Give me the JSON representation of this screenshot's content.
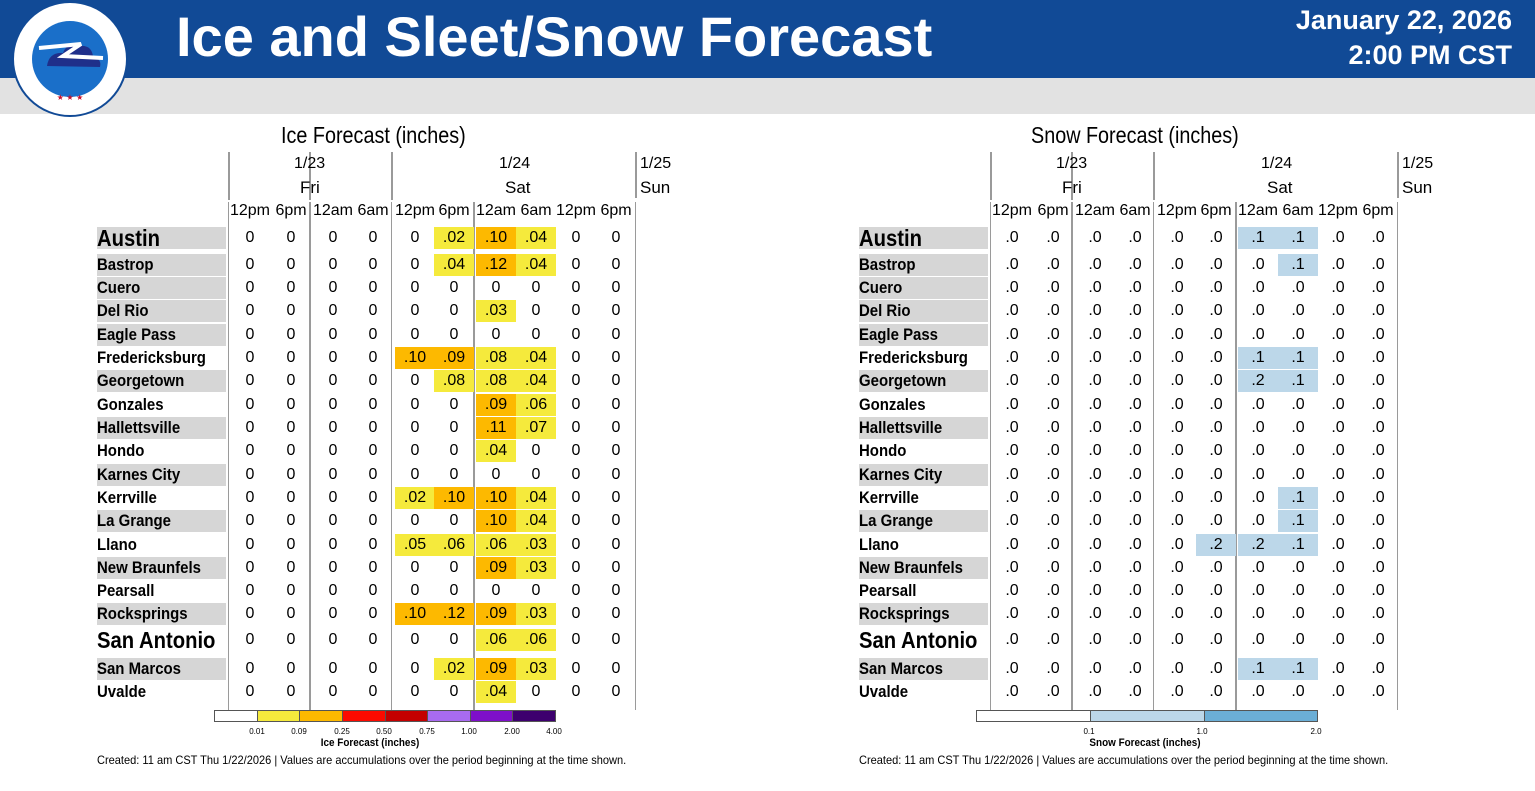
{
  "header": {
    "title": "Ice and Sleet/Snow Forecast",
    "date": "January 22, 2026",
    "time": "2:00 PM CST",
    "logo_text": "NATIONAL WEATHER SERVICE",
    "colors": {
      "header_bg": "#114a96",
      "subbar_bg": "#e2e2e2"
    }
  },
  "dates": [
    {
      "date": "1/23",
      "day": "Fri"
    },
    {
      "date": "1/24",
      "day": "Sat"
    },
    {
      "date": "1/25",
      "day": "Sun"
    }
  ],
  "times": [
    "12pm",
    "6pm",
    "12am",
    "6am",
    "12pm",
    "6pm",
    "12am",
    "6am",
    "12pm",
    "6pm"
  ],
  "cities": [
    "Austin",
    "Bastrop",
    "Cuero",
    "Del Rio",
    "Eagle Pass",
    "Fredericksburg",
    "Georgetown",
    "Gonzales",
    "Hallettsville",
    "Hondo",
    "Karnes City",
    "Kerrville",
    "La Grange",
    "Llano",
    "New Braunfels",
    "Pearsall",
    "Rocksprings",
    "San Antonio",
    "San Marcos",
    "Uvalde"
  ],
  "footnote": "Created: 11 am CST Thu 1/22/2026  |  Values are accumulations over the period beginning at the time shown.",
  "chart_data": [
    {
      "type": "table",
      "title": "Ice Forecast (inches)",
      "columns": [
        "12pm",
        "6pm",
        "12am",
        "6am",
        "12pm",
        "6pm",
        "12am",
        "6am",
        "12pm",
        "6pm"
      ],
      "rows": [
        {
          "city": "Austin",
          "values": [
            "0",
            "0",
            "0",
            "0",
            "0",
            ".02",
            ".10",
            ".04",
            "0",
            "0"
          ]
        },
        {
          "city": "Bastrop",
          "values": [
            "0",
            "0",
            "0",
            "0",
            "0",
            ".04",
            ".12",
            ".04",
            "0",
            "0"
          ]
        },
        {
          "city": "Cuero",
          "values": [
            "0",
            "0",
            "0",
            "0",
            "0",
            "0",
            "0",
            "0",
            "0",
            "0"
          ]
        },
        {
          "city": "Del Rio",
          "values": [
            "0",
            "0",
            "0",
            "0",
            "0",
            "0",
            ".03",
            "0",
            "0",
            "0"
          ]
        },
        {
          "city": "Eagle Pass",
          "values": [
            "0",
            "0",
            "0",
            "0",
            "0",
            "0",
            "0",
            "0",
            "0",
            "0"
          ]
        },
        {
          "city": "Fredericksburg",
          "values": [
            "0",
            "0",
            "0",
            "0",
            ".10",
            ".09",
            ".08",
            ".04",
            "0",
            "0"
          ]
        },
        {
          "city": "Georgetown",
          "values": [
            "0",
            "0",
            "0",
            "0",
            "0",
            ".08",
            ".08",
            ".04",
            "0",
            "0"
          ]
        },
        {
          "city": "Gonzales",
          "values": [
            "0",
            "0",
            "0",
            "0",
            "0",
            "0",
            ".09",
            ".06",
            "0",
            "0"
          ]
        },
        {
          "city": "Hallettsville",
          "values": [
            "0",
            "0",
            "0",
            "0",
            "0",
            "0",
            ".11",
            ".07",
            "0",
            "0"
          ]
        },
        {
          "city": "Hondo",
          "values": [
            "0",
            "0",
            "0",
            "0",
            "0",
            "0",
            ".04",
            "0",
            "0",
            "0"
          ]
        },
        {
          "city": "Karnes City",
          "values": [
            "0",
            "0",
            "0",
            "0",
            "0",
            "0",
            "0",
            "0",
            "0",
            "0"
          ]
        },
        {
          "city": "Kerrville",
          "values": [
            "0",
            "0",
            "0",
            "0",
            ".02",
            ".10",
            ".10",
            ".04",
            "0",
            "0"
          ]
        },
        {
          "city": "La Grange",
          "values": [
            "0",
            "0",
            "0",
            "0",
            "0",
            "0",
            ".10",
            ".04",
            "0",
            "0"
          ]
        },
        {
          "city": "Llano",
          "values": [
            "0",
            "0",
            "0",
            "0",
            ".05",
            ".06",
            ".06",
            ".03",
            "0",
            "0"
          ]
        },
        {
          "city": "New Braunfels",
          "values": [
            "0",
            "0",
            "0",
            "0",
            "0",
            "0",
            ".09",
            ".03",
            "0",
            "0"
          ]
        },
        {
          "city": "Pearsall",
          "values": [
            "0",
            "0",
            "0",
            "0",
            "0",
            "0",
            "0",
            "0",
            "0",
            "0"
          ]
        },
        {
          "city": "Rocksprings",
          "values": [
            "0",
            "0",
            "0",
            "0",
            ".10",
            ".12",
            ".09",
            ".03",
            "0",
            "0"
          ]
        },
        {
          "city": "San Antonio",
          "values": [
            "0",
            "0",
            "0",
            "0",
            "0",
            "0",
            ".06",
            ".06",
            "0",
            "0"
          ]
        },
        {
          "city": "San Marcos",
          "values": [
            "0",
            "0",
            "0",
            "0",
            "0",
            ".02",
            ".09",
            ".03",
            "0",
            "0"
          ]
        },
        {
          "city": "Uvalde",
          "values": [
            "0",
            "0",
            "0",
            "0",
            "0",
            "0",
            ".04",
            "0",
            "0",
            "0"
          ]
        }
      ],
      "legend": {
        "title": "Ice Forecast (inches)",
        "ticks": [
          "0.01",
          "0.09",
          "0.25",
          "0.50",
          "0.75",
          "1.00",
          "2.00",
          "4.00"
        ],
        "colors": [
          "#ffffff",
          "#f5ea3c",
          "#fdb900",
          "#fc0a00",
          "#c40000",
          "#a86bf0",
          "#7e0fc9",
          "#3d006e"
        ]
      }
    },
    {
      "type": "table",
      "title": "Snow Forecast (inches)",
      "columns": [
        "12pm",
        "6pm",
        "12am",
        "6am",
        "12pm",
        "6pm",
        "12am",
        "6am",
        "12pm",
        "6pm"
      ],
      "rows": [
        {
          "city": "Austin",
          "values": [
            ".0",
            ".0",
            ".0",
            ".0",
            ".0",
            ".0",
            ".1",
            ".1",
            ".0",
            ".0"
          ]
        },
        {
          "city": "Bastrop",
          "values": [
            ".0",
            ".0",
            ".0",
            ".0",
            ".0",
            ".0",
            ".0",
            ".1",
            ".0",
            ".0"
          ]
        },
        {
          "city": "Cuero",
          "values": [
            ".0",
            ".0",
            ".0",
            ".0",
            ".0",
            ".0",
            ".0",
            ".0",
            ".0",
            ".0"
          ]
        },
        {
          "city": "Del Rio",
          "values": [
            ".0",
            ".0",
            ".0",
            ".0",
            ".0",
            ".0",
            ".0",
            ".0",
            ".0",
            ".0"
          ]
        },
        {
          "city": "Eagle Pass",
          "values": [
            ".0",
            ".0",
            ".0",
            ".0",
            ".0",
            ".0",
            ".0",
            ".0",
            ".0",
            ".0"
          ]
        },
        {
          "city": "Fredericksburg",
          "values": [
            ".0",
            ".0",
            ".0",
            ".0",
            ".0",
            ".0",
            ".1",
            ".1",
            ".0",
            ".0"
          ]
        },
        {
          "city": "Georgetown",
          "values": [
            ".0",
            ".0",
            ".0",
            ".0",
            ".0",
            ".0",
            ".2",
            ".1",
            ".0",
            ".0"
          ]
        },
        {
          "city": "Gonzales",
          "values": [
            ".0",
            ".0",
            ".0",
            ".0",
            ".0",
            ".0",
            ".0",
            ".0",
            ".0",
            ".0"
          ]
        },
        {
          "city": "Hallettsville",
          "values": [
            ".0",
            ".0",
            ".0",
            ".0",
            ".0",
            ".0",
            ".0",
            ".0",
            ".0",
            ".0"
          ]
        },
        {
          "city": "Hondo",
          "values": [
            ".0",
            ".0",
            ".0",
            ".0",
            ".0",
            ".0",
            ".0",
            ".0",
            ".0",
            ".0"
          ]
        },
        {
          "city": "Karnes City",
          "values": [
            ".0",
            ".0",
            ".0",
            ".0",
            ".0",
            ".0",
            ".0",
            ".0",
            ".0",
            ".0"
          ]
        },
        {
          "city": "Kerrville",
          "values": [
            ".0",
            ".0",
            ".0",
            ".0",
            ".0",
            ".0",
            ".0",
            ".1",
            ".0",
            ".0"
          ]
        },
        {
          "city": "La Grange",
          "values": [
            ".0",
            ".0",
            ".0",
            ".0",
            ".0",
            ".0",
            ".0",
            ".1",
            ".0",
            ".0"
          ]
        },
        {
          "city": "Llano",
          "values": [
            ".0",
            ".0",
            ".0",
            ".0",
            ".0",
            ".2",
            ".2",
            ".1",
            ".0",
            ".0"
          ]
        },
        {
          "city": "New Braunfels",
          "values": [
            ".0",
            ".0",
            ".0",
            ".0",
            ".0",
            ".0",
            ".0",
            ".0",
            ".0",
            ".0"
          ]
        },
        {
          "city": "Pearsall",
          "values": [
            ".0",
            ".0",
            ".0",
            ".0",
            ".0",
            ".0",
            ".0",
            ".0",
            ".0",
            ".0"
          ]
        },
        {
          "city": "Rocksprings",
          "values": [
            ".0",
            ".0",
            ".0",
            ".0",
            ".0",
            ".0",
            ".0",
            ".0",
            ".0",
            ".0"
          ]
        },
        {
          "city": "San Antonio",
          "values": [
            ".0",
            ".0",
            ".0",
            ".0",
            ".0",
            ".0",
            ".0",
            ".0",
            ".0",
            ".0"
          ]
        },
        {
          "city": "San Marcos",
          "values": [
            ".0",
            ".0",
            ".0",
            ".0",
            ".0",
            ".0",
            ".1",
            ".1",
            ".0",
            ".0"
          ]
        },
        {
          "city": "Uvalde",
          "values": [
            ".0",
            ".0",
            ".0",
            ".0",
            ".0",
            ".0",
            ".0",
            ".0",
            ".0",
            ".0"
          ]
        }
      ],
      "legend": {
        "title": "Snow Forecast (inches)",
        "ticks": [
          "0.1",
          "1.0",
          "2.0"
        ],
        "colors": [
          "#ffffff",
          "#bcd7e9",
          "#6baed6"
        ]
      }
    }
  ]
}
